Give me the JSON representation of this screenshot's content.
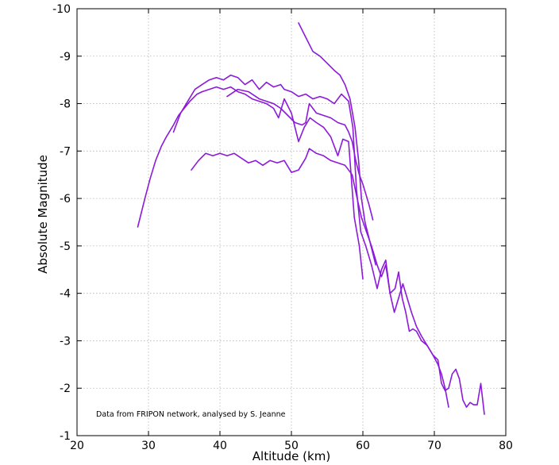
{
  "chart_data": {
    "type": "line",
    "title": "",
    "xlabel": "Altitude (km)",
    "ylabel": "Absolute Magnitude",
    "xlim": [
      20,
      80
    ],
    "ylim": [
      -10,
      -1
    ],
    "y_axis_inverted": true,
    "x_ticks": [
      20,
      30,
      40,
      50,
      60,
      70,
      80
    ],
    "y_ticks": [
      -10,
      -9,
      -8,
      -7,
      -6,
      -5,
      -4,
      -3,
      -2,
      -1
    ],
    "x_tick_labels": [
      "20",
      "30",
      "40",
      "50",
      "60",
      "70",
      "80"
    ],
    "y_tick_labels": [
      "-10",
      "-9",
      "-8",
      "-7",
      "-6",
      "-5",
      "-4",
      "-3",
      "-2",
      "-1"
    ],
    "grid": true,
    "line_color": "#8c1ad9",
    "annotation": "Data from FRIPON network, analysed by S. Jeanne",
    "series": [
      {
        "x": [
          28.5,
          29.0,
          29.5,
          30.2,
          31.0,
          31.8,
          32.5,
          33.5,
          34.2,
          35.0,
          35.8,
          36.8,
          37.5,
          38.5,
          39.5,
          40.5,
          41.5,
          42.5,
          43.5,
          44.5,
          45.5,
          46.5,
          47.5,
          48.2,
          49.0,
          50.0,
          51.0,
          51.8,
          52.6,
          53.5,
          54.5,
          55.5,
          56.5,
          57.2,
          58.0,
          58.8,
          59.5,
          60.0
        ],
        "y": [
          -5.4,
          -5.7,
          -6.0,
          -6.4,
          -6.8,
          -7.1,
          -7.3,
          -7.55,
          -7.75,
          -7.9,
          -8.05,
          -8.2,
          -8.25,
          -8.3,
          -8.35,
          -8.3,
          -8.35,
          -8.25,
          -8.2,
          -8.1,
          -8.05,
          -8.0,
          -7.9,
          -7.7,
          -8.1,
          -7.8,
          -7.2,
          -7.5,
          -7.7,
          -7.6,
          -7.5,
          -7.3,
          -6.9,
          -7.25,
          -7.2,
          -5.6,
          -5.0,
          -4.3
        ]
      },
      {
        "x": [
          33.5,
          34.5,
          35.5,
          36.5,
          37.5,
          38.5,
          39.5,
          40.5,
          41.5,
          42.5,
          43.5,
          44.5,
          45.5,
          46.5,
          47.5,
          48.5,
          49.0,
          50.0,
          51.0,
          52.0,
          53.0,
          54.0,
          55.0,
          56.0,
          57.0,
          58.0,
          58.6,
          59.1,
          59.7,
          60.4,
          61.2,
          62.0,
          62.6,
          63.2,
          63.8,
          64.4,
          65.0,
          65.6,
          66.2,
          66.8,
          67.5,
          68.2,
          69.0,
          69.8,
          70.5,
          71.0,
          71.5,
          72.0
        ],
        "y": [
          -7.4,
          -7.8,
          -8.05,
          -8.3,
          -8.4,
          -8.5,
          -8.55,
          -8.5,
          -8.6,
          -8.55,
          -8.4,
          -8.5,
          -8.3,
          -8.45,
          -8.35,
          -8.4,
          -8.3,
          -8.25,
          -8.15,
          -8.2,
          -8.1,
          -8.15,
          -8.1,
          -8.0,
          -8.2,
          -8.05,
          -7.5,
          -6.2,
          -5.3,
          -5.0,
          -4.6,
          -4.1,
          -4.5,
          -4.7,
          -4.0,
          -3.6,
          -3.9,
          -4.2,
          -3.9,
          -3.6,
          -3.3,
          -3.1,
          -2.9,
          -2.7,
          -2.5,
          -2.3,
          -2.0,
          -1.6
        ]
      },
      {
        "x": [
          41.0,
          42.5,
          44.0,
          45.5,
          46.5,
          47.5,
          48.5,
          49.5,
          50.5,
          51.5,
          52.0,
          52.5,
          53.5,
          54.5,
          55.5,
          56.5,
          57.5,
          58.0,
          58.5,
          59.0,
          59.5,
          60.0,
          60.8,
          61.4
        ],
        "y": [
          -8.15,
          -8.3,
          -8.25,
          -8.1,
          -8.05,
          -8.0,
          -7.9,
          -7.75,
          -7.6,
          -7.55,
          -7.6,
          -8.0,
          -7.8,
          -7.75,
          -7.7,
          -7.6,
          -7.55,
          -7.4,
          -7.2,
          -6.8,
          -6.5,
          -6.3,
          -5.9,
          -5.55
        ]
      },
      {
        "x": [
          51.0,
          52.0,
          53.0,
          54.0,
          55.0,
          56.0,
          56.8,
          57.5,
          58.2,
          58.9,
          59.4,
          59.8,
          60.3,
          60.8,
          61.3,
          61.8
        ],
        "y": [
          -9.7,
          -9.4,
          -9.1,
          -9.0,
          -8.85,
          -8.7,
          -8.6,
          -8.4,
          -8.1,
          -7.5,
          -6.8,
          -6.0,
          -5.5,
          -5.2,
          -4.9,
          -4.6
        ]
      },
      {
        "x": [
          36.0,
          37.0,
          38.0,
          39.0,
          40.0,
          41.0,
          42.0,
          43.0,
          44.0,
          45.0,
          46.0,
          47.0,
          48.0,
          49.0,
          50.0,
          51.0,
          52.0,
          52.5,
          53.5,
          54.5,
          55.5,
          56.5,
          57.5,
          58.5,
          59.2,
          59.8,
          60.5,
          61.2,
          62.0,
          62.6,
          63.2,
          63.8,
          64.5,
          65.0,
          65.5,
          66.0,
          66.5,
          67.0,
          67.5,
          68.2,
          69.0,
          69.8,
          70.5,
          71.0,
          71.5,
          72.0,
          72.5,
          73.0,
          73.5,
          74.0,
          74.5,
          75.0,
          75.5,
          76.0,
          76.5,
          77.0
        ],
        "y": [
          -6.6,
          -6.8,
          -6.95,
          -6.9,
          -6.95,
          -6.9,
          -6.95,
          -6.85,
          -6.75,
          -6.8,
          -6.7,
          -6.8,
          -6.75,
          -6.8,
          -6.55,
          -6.6,
          -6.85,
          -7.05,
          -6.95,
          -6.9,
          -6.8,
          -6.75,
          -6.7,
          -6.5,
          -6.0,
          -5.6,
          -5.3,
          -5.0,
          -4.6,
          -4.35,
          -4.6,
          -4.0,
          -4.1,
          -4.45,
          -3.9,
          -3.6,
          -3.2,
          -3.25,
          -3.2,
          -3.0,
          -2.9,
          -2.7,
          -2.6,
          -2.1,
          -1.95,
          -2.0,
          -2.3,
          -2.4,
          -2.2,
          -1.75,
          -1.6,
          -1.7,
          -1.65,
          -1.65,
          -2.1,
          -1.45
        ]
      }
    ]
  }
}
